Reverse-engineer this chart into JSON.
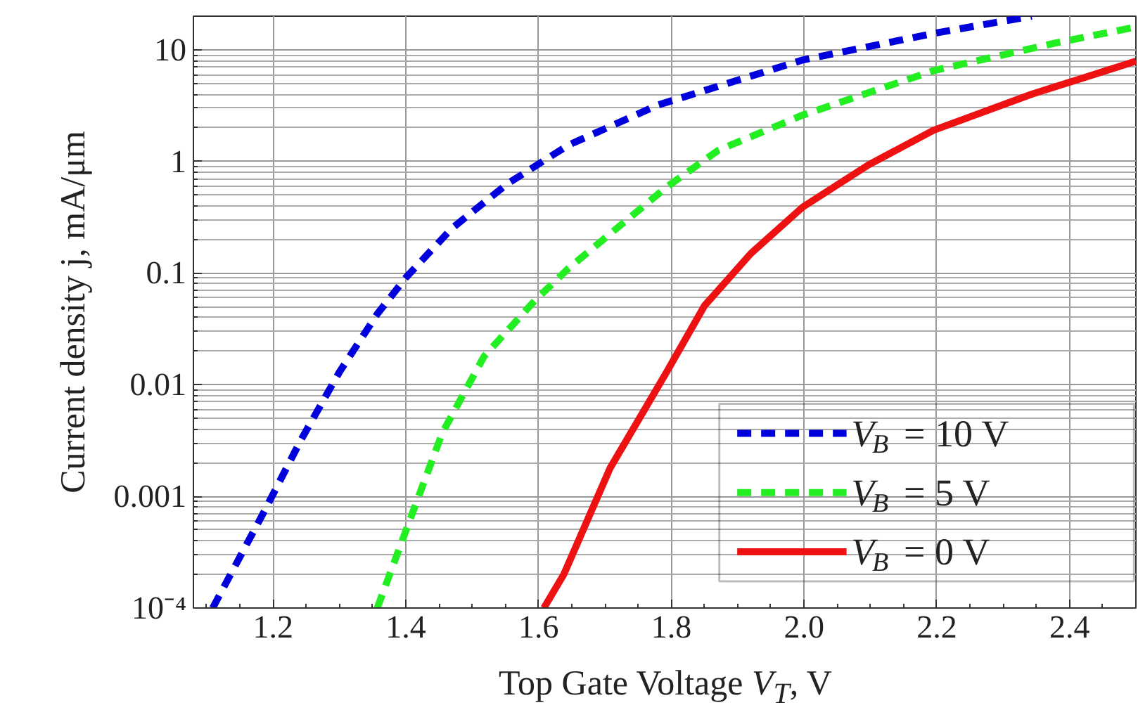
{
  "chart_data": {
    "type": "line",
    "xlabel": "Top Gate Voltage V$_{T}$, V",
    "ylabel": "Current density j, mA/μm",
    "log": "y",
    "xlim": [
      1.08,
      2.5
    ],
    "ylim": [
      0.0001,
      20
    ],
    "xticks": [
      1.2,
      1.4,
      1.6,
      1.8,
      {
        "value": 2,
        "label": "2.0"
      },
      2.2,
      2.4
    ],
    "yticks": [
      {
        "value": 0.0001,
        "label": "10⁻⁴"
      },
      0.001,
      0.01,
      0.1,
      1,
      10
    ],
    "grid": true,
    "legend": "bottom right",
    "line_style": "solid",
    "series": [
      {
        "name": "V$_{B}$ = 10 V",
        "color": "#0000dd",
        "line_style": "dashed",
        "x": [
          1.109,
          1.187,
          1.242,
          1.3,
          1.357,
          1.4,
          1.469,
          1.553,
          1.645,
          1.78,
          1.998,
          2.195,
          2.343
        ],
        "values": [
          0.0001,
          0.00074,
          0.0032,
          0.013,
          0.043,
          0.091,
          0.25,
          0.63,
          1.4,
          3.2,
          8.1,
          14,
          20
        ]
      },
      {
        "name": "V$_{B}$ = 5 V",
        "color": "#22ee22",
        "line_style": "dashed",
        "x": [
          1.357,
          1.4,
          1.455,
          1.518,
          1.596,
          1.645,
          1.793,
          1.871,
          1.998,
          2.195,
          2.379,
          2.5
        ],
        "values": [
          0.0001,
          0.00049,
          0.0037,
          0.018,
          0.058,
          0.11,
          0.59,
          1.26,
          2.6,
          6.5,
          11.5,
          16
        ]
      },
      {
        "name": "V$_{B}$ = 0 V",
        "color": "#ee1111",
        "x": [
          1.608,
          1.638,
          1.708,
          1.793,
          1.85,
          1.92,
          1.998,
          2.097,
          2.195,
          2.343,
          2.5
        ],
        "values": [
          0.0001,
          0.0002,
          0.0018,
          0.013,
          0.051,
          0.15,
          0.39,
          0.93,
          1.9,
          4.0,
          7.9
        ]
      }
    ]
  }
}
